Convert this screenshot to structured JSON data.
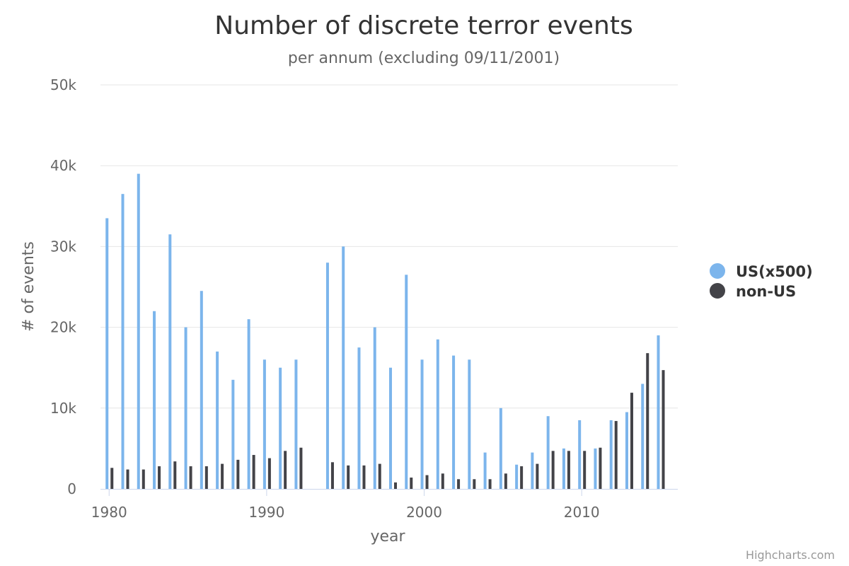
{
  "chart_data": {
    "type": "bar",
    "title": "Number of discrete terror events",
    "subtitle": "per annum (excluding 09/11/2001)",
    "xlabel": "year",
    "ylabel": "# of events",
    "ylim": [
      0,
      50000
    ],
    "y_ticks": [
      0,
      10000,
      20000,
      30000,
      40000,
      50000
    ],
    "y_tick_labels": [
      "0",
      "10k",
      "20k",
      "30k",
      "40k",
      "50k"
    ],
    "x_ticks": [
      1980,
      1990,
      2000,
      2010
    ],
    "x_tick_labels": [
      "1980",
      "1990",
      "2000",
      "2010"
    ],
    "grid": true,
    "legend_position": "right",
    "credits": "Highcharts.com",
    "x": [
      1980,
      1981,
      1982,
      1983,
      1984,
      1985,
      1986,
      1987,
      1988,
      1989,
      1990,
      1991,
      1992,
      1993,
      1994,
      1995,
      1996,
      1997,
      1998,
      1999,
      2000,
      2001,
      2002,
      2003,
      2004,
      2005,
      2006,
      2007,
      2008,
      2009,
      2010,
      2011,
      2012,
      2013,
      2014,
      2015
    ],
    "series": [
      {
        "name": "US(x500)",
        "color": "#7cb5ec",
        "values": [
          33500,
          36500,
          39000,
          22000,
          31500,
          20000,
          24500,
          17000,
          13500,
          21000,
          16000,
          15000,
          16000,
          null,
          28000,
          30000,
          17500,
          20000,
          15000,
          26500,
          16000,
          18500,
          16500,
          16000,
          4500,
          10000,
          3000,
          4500,
          9000,
          5000,
          8500,
          5000,
          8500,
          9500,
          13000,
          19000
        ]
      },
      {
        "name": "non-US",
        "color": "#434348",
        "values": [
          2600,
          2400,
          2400,
          2800,
          3400,
          2800,
          2800,
          3100,
          3600,
          4200,
          3800,
          4700,
          5100,
          null,
          3300,
          2900,
          2900,
          3100,
          800,
          1400,
          1700,
          1900,
          1200,
          1200,
          1200,
          1900,
          2800,
          3100,
          4700,
          4700,
          4700,
          5100,
          8400,
          11900,
          16800,
          14700
        ]
      }
    ]
  }
}
